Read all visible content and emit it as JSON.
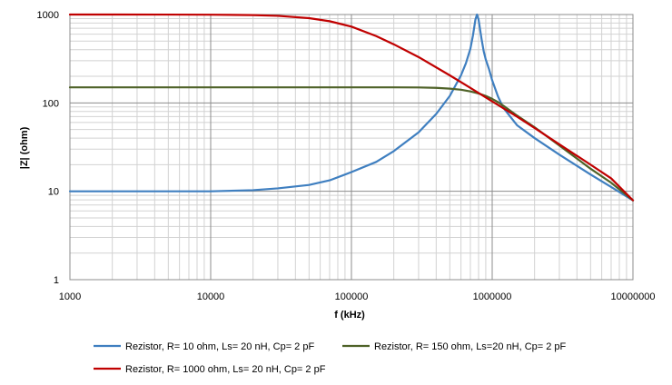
{
  "chart_data": {
    "type": "line",
    "title": "",
    "xlabel": "f (kHz)",
    "ylabel": "|Z|  (ohm)",
    "x_scale": "log",
    "y_scale": "log",
    "xlim": [
      1000,
      10000000
    ],
    "ylim": [
      1,
      1000
    ],
    "x_ticks": [
      1000,
      10000,
      100000,
      1000000,
      10000000
    ],
    "x_tick_labels": [
      "1000",
      "10000",
      "100000",
      "1000000",
      "10000000"
    ],
    "y_ticks": [
      1,
      10,
      100,
      1000
    ],
    "y_tick_labels": [
      "1",
      "10",
      "100",
      "1000"
    ],
    "grid": true,
    "legend_position": "bottom",
    "series": [
      {
        "name": "Rezistor, R= 10 ohm, Ls= 20 nH, Cp= 2 pF",
        "color": "#3f7fc0",
        "x": [
          1000,
          10000,
          20000,
          30000,
          50000,
          70000,
          100000,
          150000,
          200000,
          300000,
          400000,
          500000,
          600000,
          650000,
          700000,
          730000,
          760000,
          780000,
          800000,
          820000,
          840000,
          870000,
          900000,
          950000,
          1000000,
          1100000,
          1200000,
          1500000,
          2000000,
          3000000,
          5000000,
          7000000,
          10000000
        ],
        "y": [
          10,
          10,
          10.3,
          10.8,
          11.8,
          13.3,
          16.5,
          21.5,
          28.5,
          46.5,
          75,
          120,
          205,
          280,
          410,
          580,
          880,
          1000,
          880,
          680,
          530,
          385,
          310,
          240,
          180,
          118,
          88,
          56,
          40,
          26,
          15.5,
          11.2,
          7.9
        ]
      },
      {
        "name": "Rezistor, R= 150 ohm, Ls=20 nH, Cp= 2 pF",
        "color": "#4f6228",
        "x": [
          1000,
          100000,
          200000,
          300000,
          400000,
          500000,
          600000,
          700000,
          800000,
          900000,
          1000000,
          1100000,
          1200000,
          1500000,
          2000000,
          3000000,
          5000000,
          7000000,
          10000000
        ],
        "y": [
          150,
          150,
          150,
          149.5,
          148,
          145,
          141,
          135,
          128,
          120,
          111,
          102,
          93,
          72,
          53,
          33,
          18,
          12.5,
          7.9
        ]
      },
      {
        "name": "Rezistor, R= 1000 ohm, Ls= 20 nH, Cp= 2 pF",
        "color": "#c00000",
        "x": [
          1000,
          5000,
          10000,
          20000,
          30000,
          50000,
          70000,
          100000,
          150000,
          200000,
          300000,
          500000,
          700000,
          1000000,
          1500000,
          2000000,
          3000000,
          5000000,
          7000000,
          10000000
        ],
        "y": [
          1000,
          999,
          996,
          985,
          966,
          910,
          840,
          730,
          570,
          460,
          330,
          205,
          148,
          104,
          70,
          52,
          34,
          20,
          14,
          7.9
        ]
      }
    ]
  }
}
